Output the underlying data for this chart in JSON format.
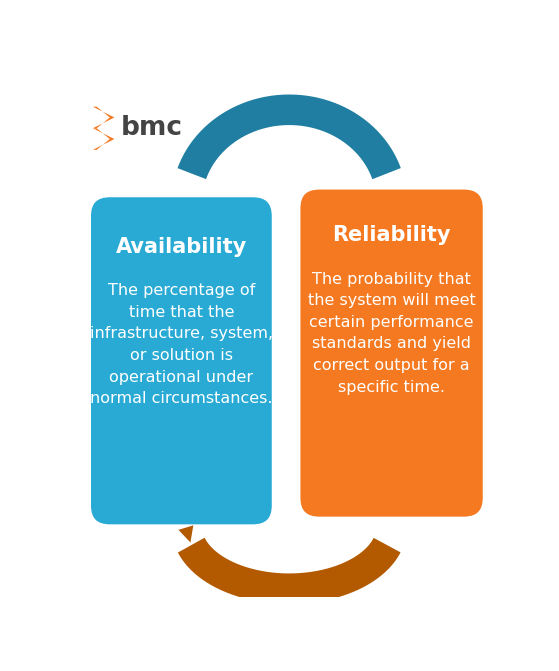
{
  "bg_color": "#ffffff",
  "left_box_color": "#29aad4",
  "right_box_color": "#f47920",
  "top_arrow_color": "#1f7ea1",
  "bottom_arrow_color": "#b35a00",
  "text_color": "#ffffff",
  "left_title": "Availability",
  "right_title": "Reliability",
  "left_body": "The percentage of\ntime that the\ninfrastructure, system,\nor solution is\noperational under\nnormal circumstances.",
  "right_body": "The probability that\nthe system will meet\ncertain performance\nstandards and yield\ncorrect output for a\nspecific time.",
  "bmc_text": "bmc",
  "bmc_icon_color": "#f47920",
  "bmc_text_color": "#444444",
  "title_fontsize": 15,
  "body_fontsize": 11.5,
  "arrow_lw": 22,
  "arrow_border_lw": 32
}
